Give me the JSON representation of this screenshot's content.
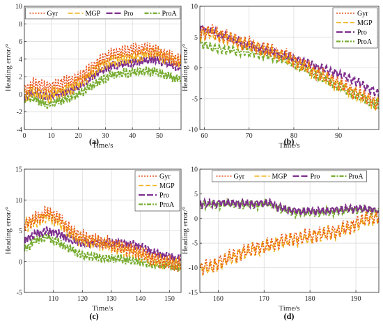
{
  "figure": {
    "colors": {
      "Gyr": "#e8541f",
      "MGP": "#f0b21a",
      "Pro": "#7e2f8e",
      "ProA": "#77ac30"
    }
  },
  "chart_data": [
    {
      "type": "line",
      "panel": "(a)",
      "xlabel": "Time/s",
      "ylabel": "Heading error/°",
      "xlim": [
        0,
        58
      ],
      "ylim": [
        -4,
        10
      ],
      "xticks": [
        "0",
        "10",
        "20",
        "30",
        "40",
        "50"
      ],
      "yticks": [
        "-4",
        "-2",
        "0",
        "2",
        "4",
        "6",
        "8",
        "10"
      ],
      "grid": true,
      "legend": {
        "placement": "top",
        "layout": "horizontal",
        "entries": [
          "Gyr",
          "MGP",
          "Pro",
          "ProA"
        ]
      },
      "series": [
        {
          "name": "Gyr",
          "x": [
            0,
            4,
            8,
            12,
            16,
            20,
            24,
            28,
            32,
            36,
            40,
            44,
            48,
            52,
            56,
            58
          ],
          "y": [
            0.5,
            1.2,
            0.8,
            1.0,
            1.5,
            1.8,
            2.8,
            3.8,
            4.5,
            4.8,
            5.0,
            5.2,
            5.0,
            4.5,
            4.0,
            3.8
          ]
        },
        {
          "name": "MGP",
          "x": [
            0,
            4,
            8,
            12,
            16,
            20,
            24,
            28,
            32,
            36,
            40,
            44,
            48,
            52,
            56,
            58
          ],
          "y": [
            0.0,
            0.3,
            -0.2,
            0.2,
            0.5,
            1.2,
            2.2,
            3.2,
            3.8,
            4.0,
            4.2,
            4.5,
            4.8,
            4.2,
            3.8,
            3.5
          ]
        },
        {
          "name": "Pro",
          "x": [
            0,
            4,
            8,
            12,
            16,
            20,
            24,
            28,
            32,
            36,
            40,
            44,
            48,
            52,
            56,
            58
          ],
          "y": [
            -0.3,
            0.2,
            -0.3,
            0.0,
            0.3,
            0.8,
            1.8,
            2.6,
            3.2,
            3.4,
            3.6,
            3.8,
            4.0,
            3.6,
            3.2,
            3.0
          ]
        },
        {
          "name": "ProA",
          "x": [
            0,
            4,
            8,
            12,
            16,
            20,
            24,
            28,
            32,
            36,
            40,
            44,
            48,
            52,
            56,
            58
          ],
          "y": [
            -0.5,
            -0.5,
            -1.2,
            -0.8,
            -0.5,
            0.0,
            0.8,
            1.5,
            2.2,
            2.4,
            2.5,
            2.6,
            2.6,
            2.2,
            1.8,
            1.6
          ]
        }
      ]
    },
    {
      "type": "line",
      "panel": "(b)",
      "xlabel": "Time/s",
      "ylabel": "Heading error/°",
      "xlim": [
        59,
        99
      ],
      "ylim": [
        -10,
        10
      ],
      "xticks": [
        "60",
        "70",
        "80",
        "90"
      ],
      "yticks": [
        "-10",
        "-5",
        "0",
        "5",
        "10"
      ],
      "grid": true,
      "legend": {
        "placement": "top-right",
        "layout": "vertical",
        "entries": [
          "Gyr",
          "MGP",
          "Pro",
          "ProA"
        ]
      },
      "series": [
        {
          "name": "Gyr",
          "x": [
            59,
            62,
            66,
            70,
            74,
            78,
            82,
            86,
            90,
            94,
            97,
            99
          ],
          "y": [
            6.0,
            5.8,
            4.8,
            3.8,
            3.0,
            2.0,
            0.5,
            -1.0,
            -2.5,
            -4.0,
            -5.0,
            -6.0
          ]
        },
        {
          "name": "MGP",
          "x": [
            59,
            62,
            66,
            70,
            74,
            78,
            82,
            86,
            90,
            94,
            97,
            99
          ],
          "y": [
            5.5,
            5.5,
            4.6,
            3.6,
            2.8,
            1.8,
            0.3,
            -1.3,
            -2.8,
            -4.3,
            -5.3,
            -6.0
          ]
        },
        {
          "name": "Pro",
          "x": [
            59,
            62,
            66,
            70,
            74,
            78,
            82,
            86,
            90,
            94,
            97,
            99
          ],
          "y": [
            6.5,
            5.8,
            4.7,
            3.6,
            2.8,
            2.0,
            1.0,
            0.0,
            -1.0,
            -2.2,
            -3.5,
            -4.2
          ]
        },
        {
          "name": "ProA",
          "x": [
            59,
            62,
            66,
            70,
            74,
            78,
            82,
            86,
            90,
            94,
            97,
            99
          ],
          "y": [
            4.0,
            3.2,
            2.8,
            2.5,
            2.0,
            1.3,
            0.0,
            -1.5,
            -3.0,
            -4.5,
            -5.5,
            -6.0
          ]
        }
      ]
    },
    {
      "type": "line",
      "panel": "(c)",
      "xlabel": "Time/s",
      "ylabel": "Heading error/°",
      "xlim": [
        100,
        154
      ],
      "ylim": [
        -5,
        15
      ],
      "xticks": [
        "110",
        "120",
        "130",
        "140",
        "150"
      ],
      "yticks": [
        "-5",
        "0",
        "5",
        "10",
        "15"
      ],
      "grid": true,
      "legend": {
        "placement": "top-right",
        "layout": "vertical",
        "entries": [
          "Gyr",
          "MGP",
          "Pro",
          "ProA"
        ]
      },
      "series": [
        {
          "name": "Gyr",
          "x": [
            100,
            104,
            108,
            112,
            116,
            120,
            124,
            128,
            132,
            136,
            140,
            144,
            148,
            152,
            154
          ],
          "y": [
            6.0,
            7.0,
            8.0,
            7.0,
            5.0,
            4.0,
            3.5,
            3.0,
            2.5,
            2.0,
            1.5,
            0.5,
            0.0,
            -0.5,
            -0.5
          ]
        },
        {
          "name": "MGP",
          "x": [
            100,
            104,
            108,
            112,
            116,
            120,
            124,
            128,
            132,
            136,
            140,
            144,
            148,
            152,
            154
          ],
          "y": [
            6.0,
            6.5,
            7.5,
            6.5,
            4.5,
            3.5,
            3.2,
            2.8,
            2.2,
            1.8,
            1.2,
            0.3,
            0.0,
            -0.3,
            -0.5
          ]
        },
        {
          "name": "Pro",
          "x": [
            100,
            104,
            108,
            112,
            116,
            120,
            124,
            128,
            132,
            136,
            140,
            144,
            148,
            152,
            154
          ],
          "y": [
            3.5,
            4.5,
            5.0,
            4.5,
            3.5,
            3.0,
            3.0,
            3.0,
            3.0,
            2.8,
            2.5,
            1.5,
            1.0,
            0.5,
            0.5
          ]
        },
        {
          "name": "ProA",
          "x": [
            100,
            104,
            108,
            112,
            116,
            120,
            124,
            128,
            132,
            136,
            140,
            144,
            148,
            152,
            154
          ],
          "y": [
            2.0,
            3.5,
            4.0,
            3.0,
            2.0,
            1.0,
            0.8,
            0.5,
            0.5,
            0.2,
            0.0,
            -0.5,
            -0.5,
            -0.8,
            -1.0
          ]
        }
      ]
    },
    {
      "type": "line",
      "panel": "(d)",
      "xlabel": "Time/s",
      "ylabel": "Heading error/°",
      "xlim": [
        156,
        195
      ],
      "ylim": [
        -15,
        10
      ],
      "xticks": [
        "160",
        "170",
        "180",
        "190"
      ],
      "yticks": [
        "-15",
        "-10",
        "-5",
        "0",
        "5",
        "10"
      ],
      "grid": true,
      "legend": {
        "placement": "top",
        "layout": "horizontal",
        "entries": [
          "Gyr",
          "MGP",
          "Pro",
          "ProA"
        ]
      },
      "series": [
        {
          "name": "Gyr",
          "x": [
            156,
            159,
            162,
            165,
            168,
            171,
            174,
            177,
            180,
            183,
            186,
            189,
            192,
            195
          ],
          "y": [
            -10.0,
            -9.5,
            -8.0,
            -7.0,
            -6.0,
            -5.5,
            -4.5,
            -4.0,
            -3.5,
            -3.0,
            -2.5,
            -1.5,
            0.0,
            0.5
          ]
        },
        {
          "name": "MGP",
          "x": [
            156,
            159,
            162,
            165,
            168,
            171,
            174,
            177,
            180,
            183,
            186,
            189,
            192,
            195
          ],
          "y": [
            -10.3,
            -9.8,
            -8.3,
            -7.2,
            -6.2,
            -5.7,
            -4.8,
            -4.2,
            -3.8,
            -3.2,
            -2.8,
            -1.8,
            -0.3,
            0.2
          ]
        },
        {
          "name": "Pro",
          "x": [
            156,
            159,
            162,
            165,
            168,
            171,
            174,
            177,
            180,
            183,
            186,
            189,
            192,
            195
          ],
          "y": [
            3.0,
            3.0,
            3.2,
            3.0,
            3.0,
            3.2,
            2.0,
            1.5,
            1.5,
            1.5,
            1.8,
            2.0,
            2.0,
            1.5
          ]
        },
        {
          "name": "ProA",
          "x": [
            156,
            159,
            162,
            165,
            168,
            171,
            174,
            177,
            180,
            183,
            186,
            189,
            192,
            195
          ],
          "y": [
            2.8,
            2.8,
            3.0,
            2.8,
            2.8,
            3.0,
            1.8,
            1.2,
            1.2,
            1.2,
            1.5,
            1.8,
            1.8,
            1.2
          ]
        }
      ]
    }
  ]
}
